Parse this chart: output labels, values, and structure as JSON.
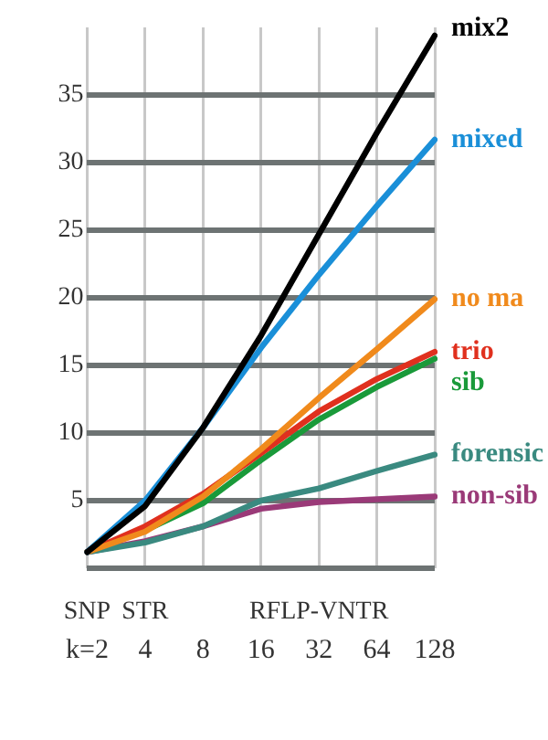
{
  "chart_data": {
    "type": "line",
    "categories": [
      "k=2",
      "4",
      "8",
      "16",
      "32",
      "64",
      "128"
    ],
    "series": [
      {
        "name": "mix2",
        "color": "#000000",
        "values": [
          1.2,
          4.6,
          10.4,
          17.2,
          24.7,
          32.2,
          39.4
        ]
      },
      {
        "name": "mixed",
        "color": "#1a8fd8",
        "values": [
          1.2,
          5.0,
          10.4,
          16.3,
          21.7,
          26.8,
          31.7
        ]
      },
      {
        "name": "no ma",
        "color": "#f08a1c",
        "values": [
          1.2,
          2.7,
          5.3,
          8.8,
          12.6,
          16.2,
          19.9
        ]
      },
      {
        "name": "trio",
        "color": "#e0301e",
        "values": [
          1.2,
          3.1,
          5.5,
          8.5,
          11.6,
          14.0,
          16.0
        ]
      },
      {
        "name": "sib",
        "color": "#1a9a3a",
        "values": [
          1.2,
          2.8,
          4.8,
          8.0,
          11.0,
          13.4,
          15.5
        ]
      },
      {
        "name": "forensic",
        "color": "#3a8a80",
        "values": [
          1.2,
          1.9,
          3.1,
          5.0,
          5.9,
          7.2,
          8.4
        ]
      },
      {
        "name": "non-sib",
        "color": "#9a3a78",
        "values": [
          1.2,
          2.0,
          3.1,
          4.4,
          4.9,
          5.1,
          5.3
        ]
      }
    ],
    "ylim": [
      0,
      40
    ],
    "yticks": [
      {
        "value": 0,
        "label": null
      },
      5,
      10,
      15,
      20,
      25,
      30,
      35
    ],
    "annotations": [
      "SNP",
      "STR",
      "RFLP-VNTR"
    ],
    "grid": true,
    "legend": false,
    "marker": "none",
    "line_style": "solid"
  }
}
